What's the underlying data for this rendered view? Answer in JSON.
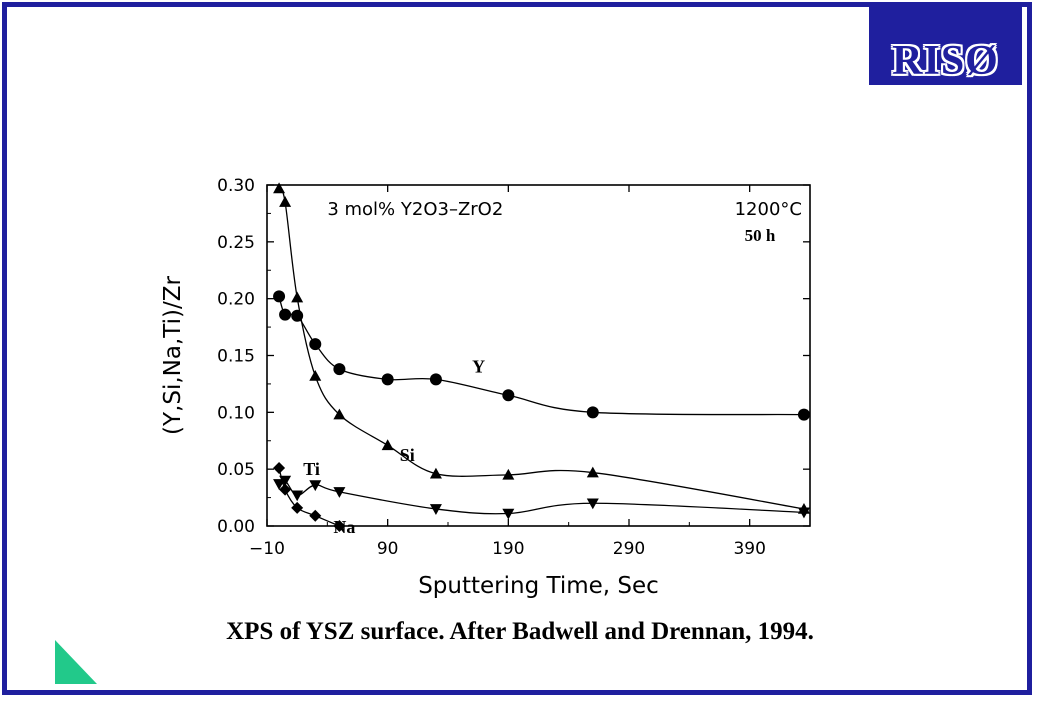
{
  "logo": {
    "text": "RISØ"
  },
  "caption": "XPS of YSZ surface. After Badwell and Drennan, 1994.",
  "colors": {
    "frame": "#1f1f9e",
    "accent_triangle": "#22c98a",
    "ink": "#000000"
  },
  "chart_data": {
    "type": "line",
    "title": "3 mol% Y2O3–ZrO2",
    "annotation_temperature": "1200°C",
    "annotation_time": "50 h",
    "xlabel": "Sputtering Time, Sec",
    "ylabel": "(Y,Si,Na,Ti)/Zr",
    "xlim": [
      -10,
      440
    ],
    "ylim": [
      0,
      0.3
    ],
    "xticks": [
      -10,
      90,
      190,
      290,
      390
    ],
    "xtick_labels": [
      "−10",
      "90",
      "190",
      "290",
      "390"
    ],
    "yticks": [
      0,
      0.05,
      0.1,
      0.15,
      0.2,
      0.25,
      0.3
    ],
    "ytick_labels": [
      "0.00",
      "0.05",
      "0.10",
      "0.15",
      "0.20",
      "0.25",
      "0.30"
    ],
    "grid": false,
    "series": [
      {
        "name": "Y",
        "marker": "circle",
        "x": [
          0,
          5,
          15,
          30,
          50,
          90,
          130,
          190,
          260,
          435
        ],
        "y": [
          0.202,
          0.186,
          0.185,
          0.16,
          0.138,
          0.129,
          0.129,
          0.115,
          0.1,
          0.098
        ]
      },
      {
        "name": "Si",
        "marker": "triangle-up",
        "x": [
          0,
          5,
          15,
          30,
          50,
          90,
          130,
          190,
          260,
          435
        ],
        "y": [
          0.297,
          0.285,
          0.201,
          0.132,
          0.098,
          0.071,
          0.046,
          0.045,
          0.047,
          0.015
        ]
      },
      {
        "name": "Ti",
        "marker": "triangle-down",
        "x": [
          0,
          5,
          15,
          30,
          50,
          130,
          190,
          260,
          435
        ],
        "y": [
          0.037,
          0.04,
          0.027,
          0.036,
          0.03,
          0.015,
          0.011,
          0.02,
          0.012
        ]
      },
      {
        "name": "Na",
        "marker": "diamond",
        "x": [
          0,
          5,
          15,
          30,
          50
        ],
        "y": [
          0.051,
          0.032,
          0.016,
          0.009,
          0.0
        ]
      }
    ],
    "series_labels": {
      "Y": "Y",
      "Si": "Si",
      "Ti": "Ti",
      "Na": "Na"
    }
  }
}
